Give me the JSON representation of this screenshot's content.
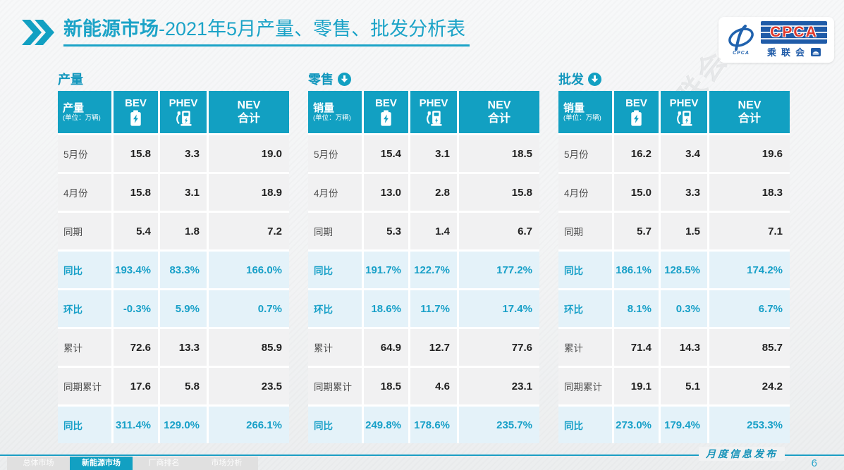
{
  "header": {
    "title_main": "新能源市场",
    "title_rest": "-2021年5月产量、零售、批发分析表",
    "logo": {
      "acronym": "CPCA",
      "cn_name": "乘联会",
      "swoosh_caption": "CPCA"
    }
  },
  "colors": {
    "accent": "#12a0c2",
    "accent_text": "#18a0c8",
    "highlight_row_bg": "#e4f2f9",
    "normal_row_bg": "#f1f1f2",
    "logo_blue": "#1f5ba8",
    "logo_red": "#e03a2d"
  },
  "icons": {
    "title_marker": "double-chevron-icon",
    "bev": "battery-icon",
    "phev": "charging-station-icon",
    "section_arrow": "circle-down-arrow-icon",
    "logo_swoosh": "cpca-swoosh-icon",
    "logo_car": "car-icon"
  },
  "col_headers": {
    "bev": "BEV",
    "phev": "PHEV",
    "nev_line1": "NEV",
    "nev_line2": "合计",
    "unit": "(单位：万辆)"
  },
  "chart_data": [
    {
      "type": "table",
      "title": "产量",
      "first_col_title": "产量",
      "columns": [
        "BEV",
        "PHEV",
        "NEV合计"
      ],
      "rows": [
        {
          "label": "5月份",
          "values": [
            "15.8",
            "3.3",
            "19.0"
          ],
          "highlight": false
        },
        {
          "label": "4月份",
          "values": [
            "15.8",
            "3.1",
            "18.9"
          ],
          "highlight": false
        },
        {
          "label": "同期",
          "values": [
            "5.4",
            "1.8",
            "7.2"
          ],
          "highlight": false
        },
        {
          "label": "同比",
          "values": [
            "193.4%",
            "83.3%",
            "166.0%"
          ],
          "highlight": true
        },
        {
          "label": "环比",
          "values": [
            "-0.3%",
            "5.9%",
            "0.7%"
          ],
          "highlight": true
        },
        {
          "label": "累计",
          "values": [
            "72.6",
            "13.3",
            "85.9"
          ],
          "highlight": false
        },
        {
          "label": "同期累计",
          "values": [
            "17.6",
            "5.8",
            "23.5"
          ],
          "highlight": false
        },
        {
          "label": "同比",
          "values": [
            "311.4%",
            "129.0%",
            "266.1%"
          ],
          "highlight": true
        }
      ]
    },
    {
      "type": "table",
      "title": "零售",
      "first_col_title": "销量",
      "columns": [
        "BEV",
        "PHEV",
        "NEV合计"
      ],
      "rows": [
        {
          "label": "5月份",
          "values": [
            "15.4",
            "3.1",
            "18.5"
          ],
          "highlight": false
        },
        {
          "label": "4月份",
          "values": [
            "13.0",
            "2.8",
            "15.8"
          ],
          "highlight": false
        },
        {
          "label": "同期",
          "values": [
            "5.3",
            "1.4",
            "6.7"
          ],
          "highlight": false
        },
        {
          "label": "同比",
          "values": [
            "191.7%",
            "122.7%",
            "177.2%"
          ],
          "highlight": true
        },
        {
          "label": "环比",
          "values": [
            "18.6%",
            "11.7%",
            "17.4%"
          ],
          "highlight": true
        },
        {
          "label": "累计",
          "values": [
            "64.9",
            "12.7",
            "77.6"
          ],
          "highlight": false
        },
        {
          "label": "同期累计",
          "values": [
            "18.5",
            "4.6",
            "23.1"
          ],
          "highlight": false
        },
        {
          "label": "同比",
          "values": [
            "249.8%",
            "178.6%",
            "235.7%"
          ],
          "highlight": true
        }
      ]
    },
    {
      "type": "table",
      "title": "批发",
      "first_col_title": "销量",
      "columns": [
        "BEV",
        "PHEV",
        "NEV合计"
      ],
      "rows": [
        {
          "label": "5月份",
          "values": [
            "16.2",
            "3.4",
            "19.6"
          ],
          "highlight": false
        },
        {
          "label": "4月份",
          "values": [
            "15.0",
            "3.3",
            "18.3"
          ],
          "highlight": false
        },
        {
          "label": "同期",
          "values": [
            "5.7",
            "1.5",
            "7.1"
          ],
          "highlight": false
        },
        {
          "label": "同比",
          "values": [
            "186.1%",
            "128.5%",
            "174.2%"
          ],
          "highlight": true
        },
        {
          "label": "环比",
          "values": [
            "8.1%",
            "0.3%",
            "6.7%"
          ],
          "highlight": true
        },
        {
          "label": "累计",
          "values": [
            "71.4",
            "14.3",
            "85.7"
          ],
          "highlight": false
        },
        {
          "label": "同期累计",
          "values": [
            "19.1",
            "5.1",
            "24.2"
          ],
          "highlight": false
        },
        {
          "label": "同比",
          "values": [
            "273.0%",
            "179.4%",
            "253.3%"
          ],
          "highlight": true
        }
      ]
    }
  ],
  "tables_meta": [
    {
      "key": "production",
      "arrow": false
    },
    {
      "key": "retail",
      "arrow": true
    },
    {
      "key": "wholesale",
      "arrow": true
    }
  ],
  "watermark": {
    "text": "CPCA乘联会"
  },
  "footer": {
    "tabs": [
      "总体市场",
      "新能源市场",
      "厂商排名",
      "市场分析"
    ],
    "active_tab": 1,
    "note": "月度信息发布",
    "page_number": "6"
  }
}
